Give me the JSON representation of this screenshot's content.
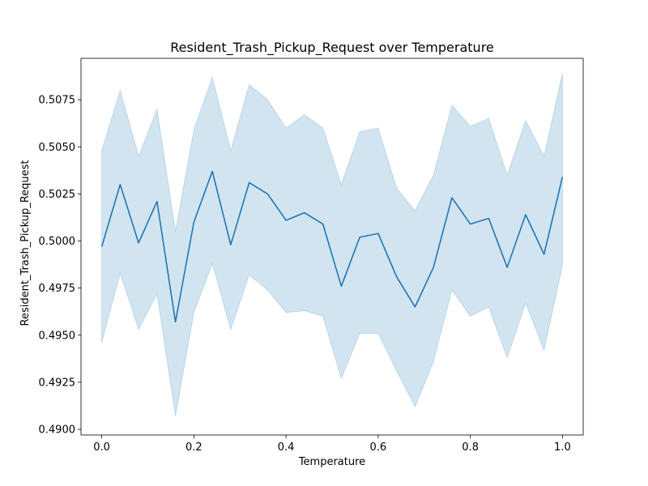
{
  "chart_data": {
    "type": "line",
    "title": "Resident_Trash_Pickup_Request over Temperature",
    "xlabel": "Temperature",
    "ylabel": "Resident_Trash_Pickup_Request",
    "xlim": [
      -0.045,
      1.045
    ],
    "ylim": [
      0.4897,
      0.5097
    ],
    "xticks": [
      0.0,
      0.2,
      0.4,
      0.6,
      0.8,
      1.0
    ],
    "xtick_labels": [
      "0.0",
      "0.2",
      "0.4",
      "0.6",
      "0.8",
      "1.0"
    ],
    "yticks": [
      0.49,
      0.4925,
      0.495,
      0.4975,
      0.5,
      0.5025,
      0.505,
      0.5075
    ],
    "ytick_labels": [
      "0.4900",
      "0.4925",
      "0.4950",
      "0.4975",
      "0.5000",
      "0.5025",
      "0.5050",
      "0.5075"
    ],
    "grid": false,
    "line_color": "#1f77b4",
    "band_color": "#1f77b4",
    "series": [
      {
        "x": [
          0.0,
          0.04,
          0.08,
          0.12,
          0.16,
          0.2,
          0.24,
          0.28,
          0.32,
          0.36,
          0.4,
          0.44,
          0.48,
          0.52,
          0.56,
          0.6,
          0.64,
          0.68,
          0.72,
          0.76,
          0.8,
          0.84,
          0.88,
          0.92,
          0.96,
          1.0
        ],
        "y": [
          0.4997,
          0.503,
          0.4999,
          0.5021,
          0.4957,
          0.501,
          0.5037,
          0.4998,
          0.5031,
          0.5025,
          0.5011,
          0.5015,
          0.5009,
          0.4976,
          0.5002,
          0.5004,
          0.4981,
          0.4965,
          0.4986,
          0.5023,
          0.5009,
          0.5012,
          0.4986,
          0.5014,
          0.4993,
          0.5034
        ],
        "ci_lower": [
          0.4946,
          0.4983,
          0.4953,
          0.4972,
          0.4907,
          0.4962,
          0.4988,
          0.4953,
          0.4982,
          0.4974,
          0.4962,
          0.4963,
          0.496,
          0.4927,
          0.4951,
          0.4951,
          0.4931,
          0.4912,
          0.4936,
          0.4974,
          0.496,
          0.4965,
          0.4938,
          0.4967,
          0.4942,
          0.4987
        ],
        "ci_upper": [
          0.5048,
          0.508,
          0.5045,
          0.507,
          0.5005,
          0.5059,
          0.5087,
          0.5048,
          0.5083,
          0.5075,
          0.506,
          0.5067,
          0.506,
          0.503,
          0.5058,
          0.506,
          0.5028,
          0.5016,
          0.5035,
          0.5072,
          0.5061,
          0.5065,
          0.5035,
          0.5064,
          0.5045,
          0.5089
        ]
      }
    ]
  }
}
